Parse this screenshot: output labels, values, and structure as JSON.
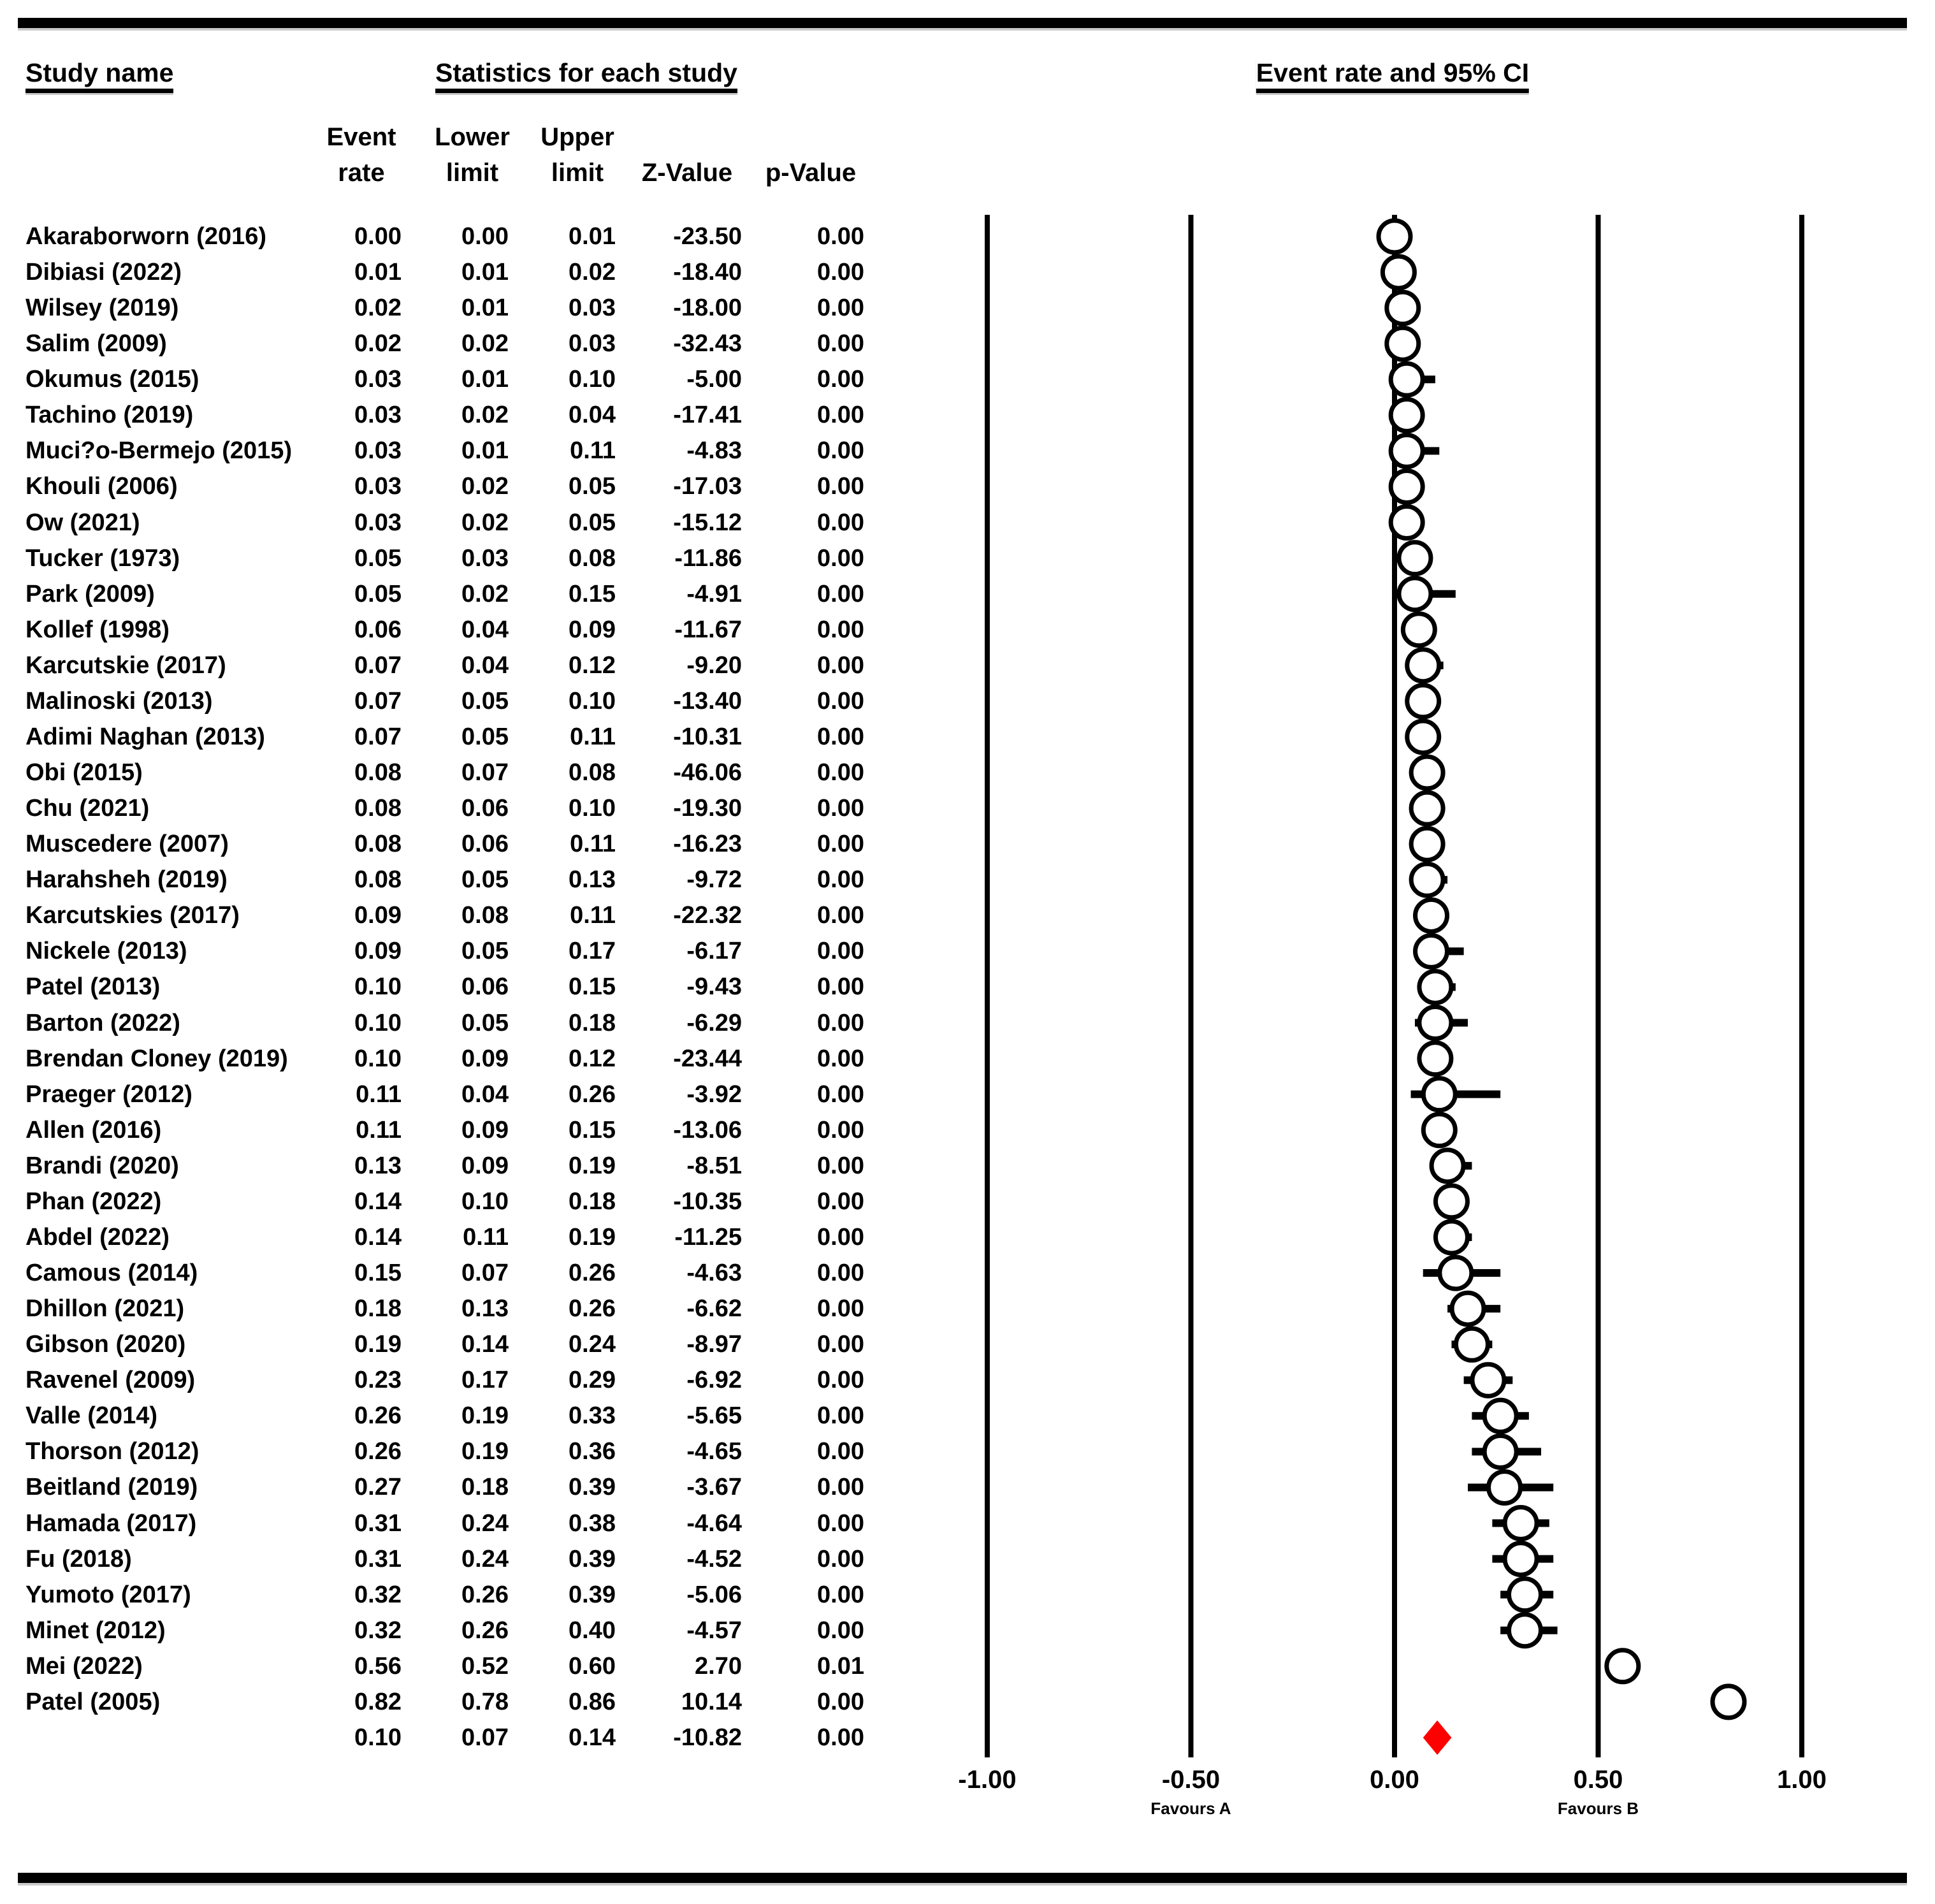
{
  "colors": {
    "background": "#ffffff",
    "text": "#000000",
    "rule": "#000000",
    "gridline": "#000000",
    "marker_fill": "#ffffff",
    "marker_stroke": "#000000",
    "whisker": "#000000",
    "summary_diamond": "#ff0000"
  },
  "chart_data": {
    "type": "scatter",
    "subtype": "forest-plot",
    "title": "Event rate and 95% CI",
    "legend_position": "none",
    "grid": "vertical-gridlines-only",
    "columns": {
      "study": "Study name",
      "stats": "Statistics for each study",
      "plot": "Event rate and 95% CI",
      "event_rate": [
        "Event",
        "rate"
      ],
      "lower": [
        "Lower",
        "limit"
      ],
      "upper": [
        "Upper",
        "limit"
      ],
      "z": "Z-Value",
      "p": "p-Value"
    },
    "x_axis": {
      "range": [
        -1,
        1
      ],
      "tick_values": [
        -1,
        -0.5,
        0,
        0.5,
        1
      ],
      "tick_labels": [
        "-1.00",
        "-0.50",
        "0.00",
        "0.50",
        "1.00"
      ],
      "favours_left": "Favours A",
      "favours_right": "Favours B"
    },
    "marker": {
      "shape": "circle",
      "fill": "#ffffff",
      "stroke": "#000000"
    },
    "summary_marker": {
      "shape": "diamond",
      "fill": "#ff0000"
    },
    "studies": [
      {
        "name": "Akaraborworn (2016)",
        "event_rate": 0.0,
        "lower_limit": 0.0,
        "upper_limit": 0.01,
        "z_value": -23.5,
        "p_value": 0.0
      },
      {
        "name": "Dibiasi (2022)",
        "event_rate": 0.01,
        "lower_limit": 0.01,
        "upper_limit": 0.02,
        "z_value": -18.4,
        "p_value": 0.0
      },
      {
        "name": "Wilsey (2019)",
        "event_rate": 0.02,
        "lower_limit": 0.01,
        "upper_limit": 0.03,
        "z_value": -18.0,
        "p_value": 0.0
      },
      {
        "name": "Salim (2009)",
        "event_rate": 0.02,
        "lower_limit": 0.02,
        "upper_limit": 0.03,
        "z_value": -32.43,
        "p_value": 0.0
      },
      {
        "name": "Okumus (2015)",
        "event_rate": 0.03,
        "lower_limit": 0.01,
        "upper_limit": 0.1,
        "z_value": -5.0,
        "p_value": 0.0
      },
      {
        "name": "Tachino (2019)",
        "event_rate": 0.03,
        "lower_limit": 0.02,
        "upper_limit": 0.04,
        "z_value": -17.41,
        "p_value": 0.0
      },
      {
        "name": "Muci?o-Bermejo (2015)",
        "event_rate": 0.03,
        "lower_limit": 0.01,
        "upper_limit": 0.11,
        "z_value": -4.83,
        "p_value": 0.0
      },
      {
        "name": "Khouli (2006)",
        "event_rate": 0.03,
        "lower_limit": 0.02,
        "upper_limit": 0.05,
        "z_value": -17.03,
        "p_value": 0.0
      },
      {
        "name": "Ow (2021)",
        "event_rate": 0.03,
        "lower_limit": 0.02,
        "upper_limit": 0.05,
        "z_value": -15.12,
        "p_value": 0.0
      },
      {
        "name": "Tucker (1973)",
        "event_rate": 0.05,
        "lower_limit": 0.03,
        "upper_limit": 0.08,
        "z_value": -11.86,
        "p_value": 0.0
      },
      {
        "name": "Park (2009)",
        "event_rate": 0.05,
        "lower_limit": 0.02,
        "upper_limit": 0.15,
        "z_value": -4.91,
        "p_value": 0.0
      },
      {
        "name": "Kollef (1998)",
        "event_rate": 0.06,
        "lower_limit": 0.04,
        "upper_limit": 0.09,
        "z_value": -11.67,
        "p_value": 0.0
      },
      {
        "name": "Karcutskie (2017)",
        "event_rate": 0.07,
        "lower_limit": 0.04,
        "upper_limit": 0.12,
        "z_value": -9.2,
        "p_value": 0.0
      },
      {
        "name": "Malinoski (2013)",
        "event_rate": 0.07,
        "lower_limit": 0.05,
        "upper_limit": 0.1,
        "z_value": -13.4,
        "p_value": 0.0
      },
      {
        "name": "Adimi Naghan (2013)",
        "event_rate": 0.07,
        "lower_limit": 0.05,
        "upper_limit": 0.11,
        "z_value": -10.31,
        "p_value": 0.0
      },
      {
        "name": "Obi (2015)",
        "event_rate": 0.08,
        "lower_limit": 0.07,
        "upper_limit": 0.08,
        "z_value": -46.06,
        "p_value": 0.0
      },
      {
        "name": "Chu (2021)",
        "event_rate": 0.08,
        "lower_limit": 0.06,
        "upper_limit": 0.1,
        "z_value": -19.3,
        "p_value": 0.0
      },
      {
        "name": "Muscedere (2007)",
        "event_rate": 0.08,
        "lower_limit": 0.06,
        "upper_limit": 0.11,
        "z_value": -16.23,
        "p_value": 0.0
      },
      {
        "name": "Harahsheh (2019)",
        "event_rate": 0.08,
        "lower_limit": 0.05,
        "upper_limit": 0.13,
        "z_value": -9.72,
        "p_value": 0.0
      },
      {
        "name": "Karcutskies (2017)",
        "event_rate": 0.09,
        "lower_limit": 0.08,
        "upper_limit": 0.11,
        "z_value": -22.32,
        "p_value": 0.0
      },
      {
        "name": "Nickele (2013)",
        "event_rate": 0.09,
        "lower_limit": 0.05,
        "upper_limit": 0.17,
        "z_value": -6.17,
        "p_value": 0.0
      },
      {
        "name": "Patel (2013)",
        "event_rate": 0.1,
        "lower_limit": 0.06,
        "upper_limit": 0.15,
        "z_value": -9.43,
        "p_value": 0.0
      },
      {
        "name": "Barton (2022)",
        "event_rate": 0.1,
        "lower_limit": 0.05,
        "upper_limit": 0.18,
        "z_value": -6.29,
        "p_value": 0.0
      },
      {
        "name": "Brendan Cloney (2019)",
        "event_rate": 0.1,
        "lower_limit": 0.09,
        "upper_limit": 0.12,
        "z_value": -23.44,
        "p_value": 0.0
      },
      {
        "name": "Praeger (2012)",
        "event_rate": 0.11,
        "lower_limit": 0.04,
        "upper_limit": 0.26,
        "z_value": -3.92,
        "p_value": 0.0
      },
      {
        "name": "Allen (2016)",
        "event_rate": 0.11,
        "lower_limit": 0.09,
        "upper_limit": 0.15,
        "z_value": -13.06,
        "p_value": 0.0
      },
      {
        "name": "Brandi (2020)",
        "event_rate": 0.13,
        "lower_limit": 0.09,
        "upper_limit": 0.19,
        "z_value": -8.51,
        "p_value": 0.0
      },
      {
        "name": "Phan (2022)",
        "event_rate": 0.14,
        "lower_limit": 0.1,
        "upper_limit": 0.18,
        "z_value": -10.35,
        "p_value": 0.0
      },
      {
        "name": "Abdel (2022)",
        "event_rate": 0.14,
        "lower_limit": 0.11,
        "upper_limit": 0.19,
        "z_value": -11.25,
        "p_value": 0.0
      },
      {
        "name": "Camous (2014)",
        "event_rate": 0.15,
        "lower_limit": 0.07,
        "upper_limit": 0.26,
        "z_value": -4.63,
        "p_value": 0.0
      },
      {
        "name": "Dhillon (2021)",
        "event_rate": 0.18,
        "lower_limit": 0.13,
        "upper_limit": 0.26,
        "z_value": -6.62,
        "p_value": 0.0
      },
      {
        "name": "Gibson (2020)",
        "event_rate": 0.19,
        "lower_limit": 0.14,
        "upper_limit": 0.24,
        "z_value": -8.97,
        "p_value": 0.0
      },
      {
        "name": "Ravenel (2009)",
        "event_rate": 0.23,
        "lower_limit": 0.17,
        "upper_limit": 0.29,
        "z_value": -6.92,
        "p_value": 0.0
      },
      {
        "name": "Valle (2014)",
        "event_rate": 0.26,
        "lower_limit": 0.19,
        "upper_limit": 0.33,
        "z_value": -5.65,
        "p_value": 0.0
      },
      {
        "name": "Thorson (2012)",
        "event_rate": 0.26,
        "lower_limit": 0.19,
        "upper_limit": 0.36,
        "z_value": -4.65,
        "p_value": 0.0
      },
      {
        "name": "Beitland (2019)",
        "event_rate": 0.27,
        "lower_limit": 0.18,
        "upper_limit": 0.39,
        "z_value": -3.67,
        "p_value": 0.0
      },
      {
        "name": "Hamada (2017)",
        "event_rate": 0.31,
        "lower_limit": 0.24,
        "upper_limit": 0.38,
        "z_value": -4.64,
        "p_value": 0.0
      },
      {
        "name": "Fu (2018)",
        "event_rate": 0.31,
        "lower_limit": 0.24,
        "upper_limit": 0.39,
        "z_value": -4.52,
        "p_value": 0.0
      },
      {
        "name": "Yumoto (2017)",
        "event_rate": 0.32,
        "lower_limit": 0.26,
        "upper_limit": 0.39,
        "z_value": -5.06,
        "p_value": 0.0
      },
      {
        "name": "Minet (2012)",
        "event_rate": 0.32,
        "lower_limit": 0.26,
        "upper_limit": 0.4,
        "z_value": -4.57,
        "p_value": 0.0
      },
      {
        "name": "Mei (2022)",
        "event_rate": 0.56,
        "lower_limit": 0.52,
        "upper_limit": 0.6,
        "z_value": 2.7,
        "p_value": 0.01
      },
      {
        "name": "Patel (2005)",
        "event_rate": 0.82,
        "lower_limit": 0.78,
        "upper_limit": 0.86,
        "z_value": 10.14,
        "p_value": 0.0
      }
    ],
    "summary": {
      "name": "",
      "event_rate": 0.1,
      "lower_limit": 0.07,
      "upper_limit": 0.14,
      "z_value": -10.82,
      "p_value": 0.0
    }
  }
}
